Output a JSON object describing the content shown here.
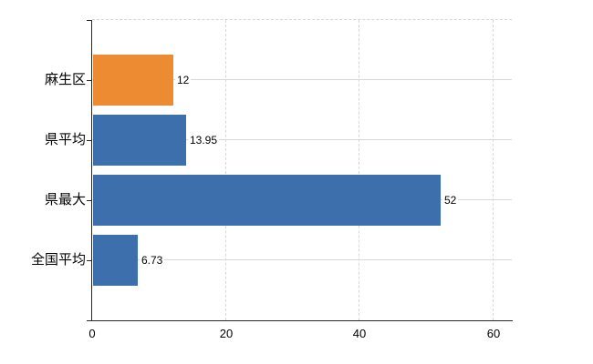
{
  "chart": {
    "background": "#ffffff",
    "axis_color": "#262626",
    "hgrid_color": "#d6dad2",
    "vgrid_color": "#dad6d6",
    "text_color": "#000000"
  },
  "chart_data": {
    "type": "bar",
    "orientation": "horizontal",
    "title": "",
    "categories": [
      "麻生区",
      "県平均",
      "県最大",
      "全国平均"
    ],
    "values": [
      12,
      13.95,
      52,
      6.73
    ],
    "value_labels": [
      "12",
      "13.95",
      "52",
      "6.73"
    ],
    "bar_colors": [
      "#ed8b33",
      "#3d6fad",
      "#3d6fad",
      "#3d6fad"
    ],
    "x_ticks": [
      0,
      20,
      40,
      60
    ],
    "x_tick_labels": [
      "0",
      "20",
      "40",
      "60"
    ],
    "xlim": [
      0,
      62.7
    ],
    "grid": true,
    "legend": false
  }
}
